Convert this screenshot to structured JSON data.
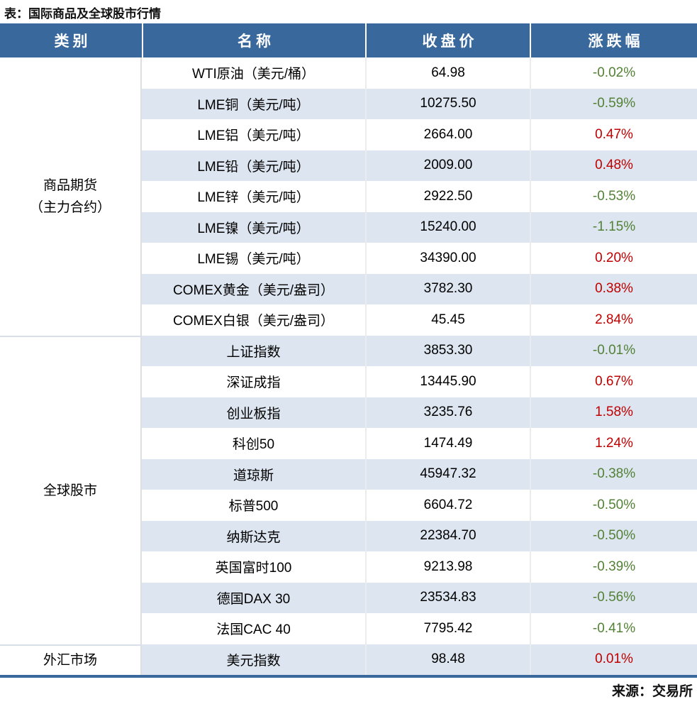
{
  "title": "表：国际商品及全球股市行情",
  "source": "来源：交易所",
  "colors": {
    "header_bg": "#39689C",
    "stripe_bg": "#DCE5F0",
    "up_red": "#C00000",
    "down_green": "#538135",
    "bottom_border": "#39689C"
  },
  "table": {
    "headers": [
      "类别",
      "名称",
      "收盘价",
      "涨跌幅"
    ],
    "sections": [
      {
        "category_lines": [
          "商品期货",
          "（主力合约）"
        ],
        "rows": [
          {
            "name": "WTI原油（美元/桶）",
            "close": "64.98",
            "change": "-0.02%"
          },
          {
            "name": "LME铜（美元/吨）",
            "close": "10275.50",
            "change": "-0.59%"
          },
          {
            "name": "LME铝（美元/吨）",
            "close": "2664.00",
            "change": "0.47%"
          },
          {
            "name": "LME铅（美元/吨）",
            "close": "2009.00",
            "change": "0.48%"
          },
          {
            "name": "LME锌（美元/吨）",
            "close": "2922.50",
            "change": "-0.53%"
          },
          {
            "name": "LME镍（美元/吨）",
            "close": "15240.00",
            "change": "-1.15%"
          },
          {
            "name": "LME锡（美元/吨）",
            "close": "34390.00",
            "change": "0.20%"
          },
          {
            "name": "COMEX黄金（美元/盎司）",
            "close": "3782.30",
            "change": "0.38%"
          },
          {
            "name": "COMEX白银（美元/盎司）",
            "close": "45.45",
            "change": "2.84%"
          }
        ]
      },
      {
        "category_lines": [
          "全球股市"
        ],
        "rows": [
          {
            "name": "上证指数",
            "close": "3853.30",
            "change": "-0.01%"
          },
          {
            "name": "深证成指",
            "close": "13445.90",
            "change": "0.67%"
          },
          {
            "name": "创业板指",
            "close": "3235.76",
            "change": "1.58%"
          },
          {
            "name": "科创50",
            "close": "1474.49",
            "change": "1.24%"
          },
          {
            "name": "道琼斯",
            "close": "45947.32",
            "change": "-0.38%"
          },
          {
            "name": "标普500",
            "close": "6604.72",
            "change": "-0.50%"
          },
          {
            "name": "纳斯达克",
            "close": "22384.70",
            "change": "-0.50%"
          },
          {
            "name": "英国富时100",
            "close": "9213.98",
            "change": "-0.39%"
          },
          {
            "name": "德国DAX 30",
            "close": "23534.83",
            "change": "-0.56%"
          },
          {
            "name": "法国CAC 40",
            "close": "7795.42",
            "change": "-0.41%"
          }
        ]
      },
      {
        "category_lines": [
          "外汇市场"
        ],
        "rows": [
          {
            "name": "美元指数",
            "close": "98.48",
            "change": "0.01%"
          }
        ]
      }
    ]
  },
  "chart_data": {
    "type": "table",
    "title": "表：国际商品及全球股市行情",
    "columns": [
      "类别",
      "名称",
      "收盘价",
      "涨跌幅"
    ],
    "rows": [
      [
        "商品期货（主力合约）",
        "WTI原油（美元/桶）",
        64.98,
        "-0.02%"
      ],
      [
        "商品期货（主力合约）",
        "LME铜（美元/吨）",
        10275.5,
        "-0.59%"
      ],
      [
        "商品期货（主力合约）",
        "LME铝（美元/吨）",
        2664.0,
        "0.47%"
      ],
      [
        "商品期货（主力合约）",
        "LME铅（美元/吨）",
        2009.0,
        "0.48%"
      ],
      [
        "商品期货（主力合约）",
        "LME锌（美元/吨）",
        2922.5,
        "-0.53%"
      ],
      [
        "商品期货（主力合约）",
        "LME镍（美元/吨）",
        15240.0,
        "-1.15%"
      ],
      [
        "商品期货（主力合约）",
        "LME锡（美元/吨）",
        34390.0,
        "0.20%"
      ],
      [
        "商品期货（主力合约）",
        "COMEX黄金（美元/盎司）",
        3782.3,
        "0.38%"
      ],
      [
        "商品期货（主力合约）",
        "COMEX白银（美元/盎司）",
        45.45,
        "2.84%"
      ],
      [
        "全球股市",
        "上证指数",
        3853.3,
        "-0.01%"
      ],
      [
        "全球股市",
        "深证成指",
        13445.9,
        "0.67%"
      ],
      [
        "全球股市",
        "创业板指",
        3235.76,
        "1.58%"
      ],
      [
        "全球股市",
        "科创50",
        1474.49,
        "1.24%"
      ],
      [
        "全球股市",
        "道琼斯",
        45947.32,
        "-0.38%"
      ],
      [
        "全球股市",
        "标普500",
        6604.72,
        "-0.50%"
      ],
      [
        "全球股市",
        "纳斯达克",
        22384.7,
        "-0.50%"
      ],
      [
        "全球股市",
        "英国富时100",
        9213.98,
        "-0.39%"
      ],
      [
        "全球股市",
        "德国DAX 30",
        23534.83,
        "-0.56%"
      ],
      [
        "全球股市",
        "法国CAC 40",
        7795.42,
        "-0.41%"
      ],
      [
        "外汇市场",
        "美元指数",
        98.48,
        "0.01%"
      ]
    ],
    "legend": {
      "positive_change_color": "#C00000",
      "negative_change_color": "#538135"
    },
    "source": "来源：交易所"
  }
}
